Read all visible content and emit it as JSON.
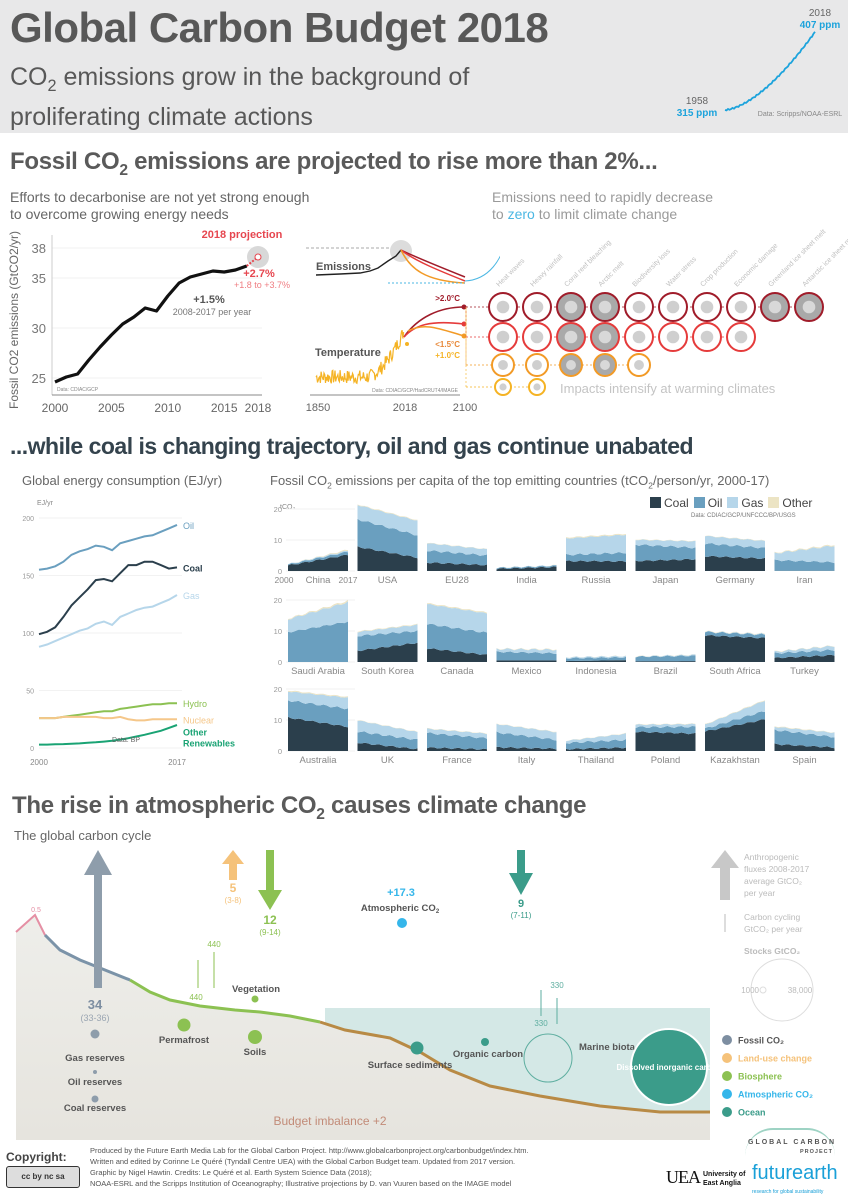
{
  "header": {
    "title": "Global Carbon Budget 2018",
    "subtitle_line1_pre": "CO",
    "subtitle_line1_sub": "2",
    "subtitle_line1_post": " emissions grow in the background of",
    "subtitle_line2": "proliferating climate actions",
    "co2_inset": {
      "start_year": "1958",
      "start_value": "315 ppm",
      "end_year": "2018",
      "end_value": "407 ppm",
      "source": "Data: Scripps/NOAA-ESRL",
      "color": "#1ca3dc"
    }
  },
  "section1": {
    "title_pre": "Fossil CO",
    "title_sub": "2",
    "title_post": " emissions are projected to rise more than 2%...",
    "left_sub_line1": "Efforts to decarbonise are not yet strong enough",
    "left_sub_line2": "to overcome growing energy needs",
    "right_sub_line1": "Emissions need to rapidly decrease",
    "right_sub_line2_pre": "to ",
    "right_sub_line2_zero": "zero",
    "right_sub_line2_post": " to limit climate change",
    "projection_label": "2018 projection",
    "projection_value": "+2.7%",
    "projection_range": "+1.8 to +3.7%",
    "growth_value": "+1.5%",
    "growth_period": "2008-2017 per year",
    "source": "Data: CDIAC/GCP",
    "emissions_label": "Emissions",
    "temperature_label": "Temperature",
    "temp_source": "Data: CDIAC/GCP/HadCRUT4/IMAGE",
    "temp_axis": [
      "1850",
      "2018",
      "2100"
    ],
    "scenarios": [
      {
        "label": ">2.0°C",
        "color": "#a01c2a"
      },
      {
        "label": "<1.5°C",
        "color": "#e8893a"
      },
      {
        "label": "+1.0°C",
        "color": "#f5b324"
      }
    ],
    "impacts_caption": "Impacts intensify at warming climates",
    "impacts": [
      "Heat waves",
      "Heavy rainfall",
      "Coral reef bleaching",
      "Arctic melt",
      "Biodiversity loss",
      "Water stress",
      "Crop production",
      "Economic damage",
      "Greenland ice sheet melt",
      "Antarctic ice sheet melt"
    ],
    "impact_rows": [
      10,
      8,
      5,
      2
    ]
  },
  "section2": {
    "title": "...while coal is changing trajectory, oil and gas continue unabated",
    "energy_title": "Global energy consumption (EJ/yr)",
    "energy_unit": "EJ/yr",
    "energy_source": "Data: BP",
    "percap_title_pre": "Fossil CO",
    "percap_title_sub": "2",
    "percap_title_post": " emissions per capita of the top emitting countries (tCO",
    "percap_title_sub2": "2",
    "percap_title_end": "/person/yr, 2000-17)",
    "percap_unit": "tCO₂",
    "percap_source": "Data: CDIAC/GCP/UNFCCC/BP/USGS",
    "percap_legend": [
      {
        "label": "Coal",
        "color": "#2b3f4c"
      },
      {
        "label": "Oil",
        "color": "#6a9fbf"
      },
      {
        "label": "Gas",
        "color": "#b6d6ea"
      },
      {
        "label": "Other",
        "color": "#ece4c4"
      }
    ],
    "china_axis": [
      "2000",
      "2017"
    ]
  },
  "chart_data": [
    {
      "type": "line",
      "title": "Fossil CO2 emissions",
      "ylabel": "Fossil CO2 emissions (GtCO2/yr)",
      "xlabel": "",
      "ylim": [
        24,
        38.5
      ],
      "xlim": [
        2000,
        2018
      ],
      "yticks": [
        "25",
        "30",
        "35",
        "38"
      ],
      "xticks": [
        "2000",
        "2005",
        "2010",
        "2015",
        "2018"
      ],
      "x": [
        2000,
        2001,
        2002,
        2003,
        2004,
        2005,
        2006,
        2007,
        2008,
        2009,
        2010,
        2011,
        2012,
        2013,
        2014,
        2015,
        2016,
        2017
      ],
      "series": [
        {
          "name": "Fossil CO2",
          "values": [
            24.6,
            25.1,
            25.4,
            26.8,
            28.1,
            29.3,
            30.4,
            31.1,
            32.0,
            31.7,
            33.2,
            34.5,
            35.1,
            35.4,
            35.7,
            35.6,
            35.8,
            36.2
          ]
        }
      ],
      "projection": {
        "x": 2018,
        "value": 37.1,
        "range": [
          36.9,
          37.5
        ]
      }
    },
    {
      "type": "line",
      "title": "Global energy consumption (EJ/yr)",
      "ylabel": "EJ/yr",
      "ylim": [
        0,
        200
      ],
      "yticks": [
        "0",
        "50",
        "100",
        "150",
        "200"
      ],
      "xticks": [
        "2000",
        "2017"
      ],
      "x": [
        2000,
        2001,
        2002,
        2003,
        2004,
        2005,
        2006,
        2007,
        2008,
        2009,
        2010,
        2011,
        2012,
        2013,
        2014,
        2015,
        2016,
        2017
      ],
      "series": [
        {
          "name": "Oil",
          "color": "#6a9fbf",
          "values": [
            155,
            156,
            158,
            162,
            168,
            171,
            173,
            176,
            175,
            172,
            178,
            180,
            182,
            184,
            185,
            188,
            191,
            194
          ]
        },
        {
          "name": "Coal",
          "color": "#2b3f4c",
          "values": [
            99,
            101,
            105,
            114,
            124,
            131,
            138,
            146,
            147,
            145,
            152,
            159,
            159,
            162,
            162,
            159,
            156,
            157
          ]
        },
        {
          "name": "Gas",
          "color": "#b6d6ea",
          "values": [
            88,
            90,
            93,
            96,
            99,
            102,
            104,
            108,
            110,
            107,
            114,
            117,
            120,
            122,
            123,
            126,
            129,
            133
          ]
        },
        {
          "name": "Hydro",
          "color": "#8cc152",
          "values": [
            26,
            26,
            26,
            27,
            28,
            29,
            30,
            31,
            32,
            32,
            34,
            35,
            36,
            37,
            38,
            38,
            39,
            39
          ]
        },
        {
          "name": "Nuclear",
          "color": "#f5c78a",
          "values": [
            26,
            26,
            26,
            27,
            27,
            27,
            27,
            27,
            26,
            26,
            27,
            25,
            24,
            24,
            25,
            25,
            25,
            25
          ]
        },
        {
          "name": "Other Renewables",
          "color": "#1aa374",
          "values": [
            3,
            3,
            3.2,
            3.4,
            3.7,
            4,
            4.5,
            5,
            5.6,
            6.3,
            7.3,
            8.5,
            10,
            11.5,
            13.2,
            15,
            17.5,
            20
          ]
        }
      ]
    },
    {
      "type": "area",
      "title": "Fossil CO2 emissions per capita (tCO2/person/yr, 2000-17)",
      "ylim": [
        0,
        20
      ],
      "yticks": [
        "0",
        "10",
        "20"
      ],
      "series_names": [
        "Coal",
        "Oil",
        "Gas",
        "Other"
      ],
      "countries": [
        {
          "name": "China",
          "start": [
            1.8,
            0.3,
            0.1,
            0.0
          ],
          "end": [
            5.2,
            1.0,
            0.4,
            0.3
          ]
        },
        {
          "name": "USA",
          "start": [
            7.8,
            8.9,
            4.6,
            0.2
          ],
          "end": [
            4.3,
            7.2,
            4.7,
            0.2
          ]
        },
        {
          "name": "EU28",
          "start": [
            2.7,
            3.9,
            2.4,
            0.1
          ],
          "end": [
            1.9,
            3.1,
            2.0,
            0.1
          ]
        },
        {
          "name": "India",
          "start": [
            0.7,
            0.3,
            0.05,
            0.0
          ],
          "end": [
            1.3,
            0.4,
            0.1,
            0.05
          ]
        },
        {
          "name": "Russia",
          "start": [
            3.2,
            2.0,
            5.3,
            0.3
          ],
          "end": [
            3.1,
            2.8,
            5.8,
            0.3
          ]
        },
        {
          "name": "Japan",
          "start": [
            3.2,
            5.3,
            1.6,
            0.1
          ],
          "end": [
            3.8,
            3.7,
            2.1,
            0.1
          ]
        },
        {
          "name": "Germany",
          "start": [
            4.8,
            4.1,
            2.4,
            0.1
          ],
          "end": [
            4.0,
            3.4,
            2.3,
            0.1
          ]
        },
        {
          "name": "Iran",
          "start": [
            0.1,
            3.4,
            2.2,
            0.2
          ],
          "end": [
            0.1,
            2.7,
            5.4,
            0.3
          ]
        },
        {
          "name": "Saudi Arabia",
          "start": [
            0.0,
            9.6,
            4.2,
            0.2
          ],
          "end": [
            0.0,
            13.0,
            6.3,
            0.5
          ]
        },
        {
          "name": "South Korea",
          "start": [
            3.6,
            4.8,
            1.3,
            0.2
          ],
          "end": [
            6.2,
            3.8,
            2.0,
            0.2
          ]
        },
        {
          "name": "Canada",
          "start": [
            4.4,
            7.9,
            6.4,
            0.3
          ],
          "end": [
            2.3,
            7.1,
            6.3,
            0.3
          ]
        },
        {
          "name": "Mexico",
          "start": [
            0.5,
            2.8,
            0.9,
            0.1
          ],
          "end": [
            0.5,
            2.3,
            1.2,
            0.1
          ]
        },
        {
          "name": "Indonesia",
          "start": [
            0.3,
            0.9,
            0.3,
            0.05
          ],
          "end": [
            0.6,
            0.9,
            0.4,
            0.05
          ]
        },
        {
          "name": "Brazil",
          "start": [
            0.2,
            1.5,
            0.1,
            0.05
          ],
          "end": [
            0.3,
            1.7,
            0.3,
            0.05
          ]
        },
        {
          "name": "South Africa",
          "start": [
            8.6,
            1.1,
            0.1,
            0.1
          ],
          "end": [
            7.7,
            1.1,
            0.2,
            0.1
          ]
        },
        {
          "name": "Turkey",
          "start": [
            1.3,
            1.5,
            0.5,
            0.1
          ],
          "end": [
            2.2,
            1.7,
            1.3,
            0.1
          ]
        },
        {
          "name": "Australia",
          "start": [
            10.8,
            5.5,
            2.9,
            0.3
          ],
          "end": [
            7.8,
            5.8,
            3.6,
            0.3
          ]
        },
        {
          "name": "UK",
          "start": [
            2.7,
            3.6,
            3.6,
            0.1
          ],
          "end": [
            0.6,
            3.0,
            2.5,
            0.1
          ]
        },
        {
          "name": "France",
          "start": [
            1.1,
            4.7,
            1.4,
            0.1
          ],
          "end": [
            0.5,
            3.6,
            1.5,
            0.1
          ]
        },
        {
          "name": "Italy",
          "start": [
            1.2,
            4.8,
            2.7,
            0.1
          ],
          "end": [
            0.7,
            2.9,
            2.5,
            0.1
          ]
        },
        {
          "name": "Thailand",
          "start": [
            0.6,
            2.0,
            0.7,
            0.05
          ],
          "end": [
            1.1,
            2.5,
            2.0,
            0.1
          ]
        },
        {
          "name": "Poland",
          "start": [
            6.2,
            1.5,
            0.8,
            0.1
          ],
          "end": [
            5.6,
            2.2,
            0.9,
            0.1
          ]
        },
        {
          "name": "Kazakhstan",
          "start": [
            6.3,
            0.9,
            1.3,
            0.1
          ],
          "end": [
            10.2,
            2.7,
            3.4,
            0.2
          ]
        },
        {
          "name": "Spain",
          "start": [
            2.2,
            4.6,
            1.0,
            0.2
          ],
          "end": [
            1.1,
            3.4,
            1.4,
            0.1
          ]
        }
      ]
    },
    {
      "type": "line",
      "title": "Atmospheric CO2 concentration",
      "x": [
        1958,
        2018
      ],
      "values_ppm": [
        315,
        407
      ]
    }
  ],
  "section3": {
    "title_pre": "The rise in atmospheric  CO",
    "title_sub": "2",
    "title_post": " causes climate change",
    "subtitle": "The global carbon cycle",
    "fluxes": [
      {
        "name": "fossil",
        "value": "34",
        "range": "(33-36)",
        "color": "#8e9dab"
      },
      {
        "name": "land-use",
        "value": "5",
        "range": "(3-8)",
        "color": "#f5c27a"
      },
      {
        "name": "land-sink",
        "value": "12",
        "range": "(9-14)",
        "color": "#8cc152"
      },
      {
        "name": "ocean-sink",
        "value": "9",
        "range": "(7-11)",
        "color": "#3b9c8a"
      }
    ],
    "atmospheric_value": "+17.3",
    "atmospheric_label_pre": "Atmospheric CO",
    "atmospheric_label_sub": "2",
    "volcano_value": "0.5",
    "land_cycling": [
      "440",
      "440"
    ],
    "ocean_cycling": [
      "330",
      "330"
    ],
    "budget_imbalance": "Budget imbalance +2",
    "stocks": [
      "Gas reserves",
      "Oil reserves",
      "Coal reserves",
      "Permafrost",
      "Soils",
      "Vegetation",
      "Surface sediments",
      "Organic carbon",
      "Marine biota",
      "Dissolved inorganic carbon"
    ],
    "key_anthro": [
      "Anthropogenic",
      "fluxes 2008-2017",
      "average GtCO₂",
      "per year"
    ],
    "key_cycling": [
      "Carbon cycling",
      "GtCO₂ per year"
    ],
    "key_stocks_title": "Stocks GtCO₂",
    "key_stock_small": "1000",
    "key_stock_large": "38,000",
    "legend": [
      {
        "label": "Fossil CO₂",
        "color": "#7d8ea1"
      },
      {
        "label": "Land-use change",
        "color": "#f5c27a"
      },
      {
        "label": "Biosphere",
        "color": "#8cc152"
      },
      {
        "label": "Atmospheric CO₂",
        "color": "#35b6ea"
      },
      {
        "label": "Ocean",
        "color": "#3b9c8a"
      }
    ]
  },
  "footer": {
    "copyright_label": "Copyright:",
    "license": "cc by nc sa",
    "line1": "Produced by the Future Earth Media Lab for the Global Carbon Project. http://www.globalcarbonproject.org/carbonbudget/index.htm.",
    "line2": "Written and edited by Corinne Le Quéré (Tyndall Centre UEA) with the Global Carbon Budget team. Updated from 2017 version.",
    "line3": "Graphic by Nigel Hawtin. Credits: Le Quéré et al. Earth System Science Data (2018);",
    "line4": "NOAA-ESRL and the Scripps Institution of Oceanography; Illustrative projections by D. van Vuuren based on the IMAGE model",
    "gcp_logo_line1": "GLOBAL CARBON",
    "gcp_logo_line2": "PROJECT",
    "uea_mark": "UEA",
    "uea_name_line1": "University of",
    "uea_name_line2": "East Anglia",
    "futurearth": "futurearth",
    "futurearth_tag": "research for global sustainability"
  }
}
